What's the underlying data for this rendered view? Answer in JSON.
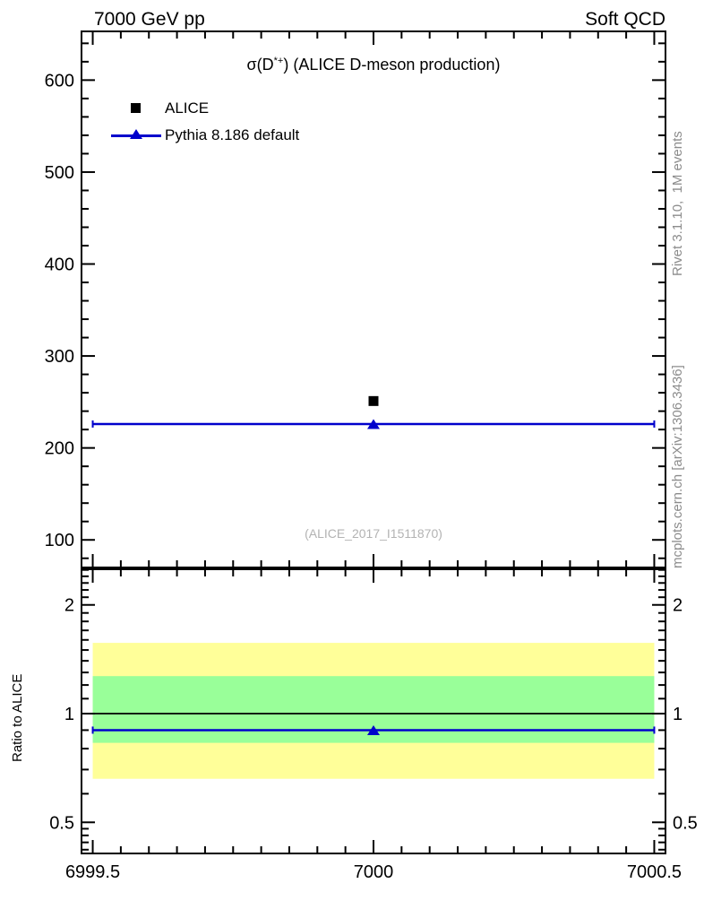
{
  "header": {
    "left": "7000 GeV pp",
    "right": "Soft QCD"
  },
  "watermarks": {
    "rivet": "Rivet 3.1.10,  1M events",
    "mcplots": "mcplots.cern.ch [arXiv:1306.3436]",
    "analysis": "(ALICE_2017_I1511870)"
  },
  "chart_data": [
    {
      "panel": "main",
      "type": "scatter",
      "title": "σ(D*+) (ALICE D-meson production)",
      "title_parts": {
        "pre": "σ(D",
        "sup": "*+",
        "post": ") (ALICE D-meson production)"
      },
      "xlim": [
        6999.48,
        7000.52
      ],
      "ylim": [
        70,
        653
      ],
      "xticks": {
        "major": [
          6999.5,
          7000,
          7000.5
        ],
        "labels": [
          "6999.5",
          "7000",
          "7000.5"
        ],
        "minor_step": 0.05
      },
      "yticks": {
        "major": [
          100,
          200,
          300,
          400,
          500,
          600
        ],
        "labels": [
          "100",
          "200",
          "300",
          "400",
          "500",
          "600"
        ],
        "minor_step": 20
      },
      "grid": false,
      "legend_position": "top-left",
      "series": [
        {
          "name": "ALICE",
          "marker": "square",
          "color": "#000000",
          "x": 7000,
          "y": 251
        },
        {
          "name": "Pythia 8.186 default",
          "marker": "triangle",
          "color": "#0000cc",
          "x": 7000,
          "y": 226,
          "line_span": [
            6999.5,
            7000.5
          ]
        }
      ],
      "legend": [
        {
          "label": "ALICE",
          "marker": "square",
          "color": "#000000"
        },
        {
          "label": "Pythia 8.186 default",
          "marker": "line-triangle",
          "color": "#0000cc"
        }
      ]
    },
    {
      "panel": "ratio",
      "type": "ratio",
      "ylabel": "Ratio to ALICE",
      "yscale": "log",
      "ylim": [
        0.41,
        2.51
      ],
      "yticks": {
        "major": [
          0.5,
          1,
          2
        ],
        "labels": [
          "0.5",
          "1",
          "2"
        ],
        "minor": [
          0.42,
          0.44,
          0.46,
          0.48,
          0.6,
          0.7,
          0.8,
          0.9,
          1.1,
          1.2,
          1.3,
          1.4,
          1.5,
          1.6,
          1.7,
          1.8,
          1.9,
          2.1,
          2.2,
          2.3,
          2.4,
          2.5
        ]
      },
      "bands": [
        {
          "name": "data-uncertainty-outer",
          "color": "#ffff99",
          "lo": 0.66,
          "hi": 1.57,
          "span": [
            6999.5,
            7000.5
          ]
        },
        {
          "name": "data-uncertainty-inner",
          "color": "#99ff99",
          "lo": 0.83,
          "hi": 1.27,
          "span": [
            6999.5,
            7000.5
          ]
        }
      ],
      "reference_line": {
        "value": 1,
        "color": "#000000"
      },
      "series": [
        {
          "name": "Pythia 8.186 default",
          "marker": "triangle",
          "color": "#0000cc",
          "x": 7000,
          "y": 0.9,
          "line_span": [
            6999.5,
            7000.5
          ]
        }
      ]
    }
  ]
}
